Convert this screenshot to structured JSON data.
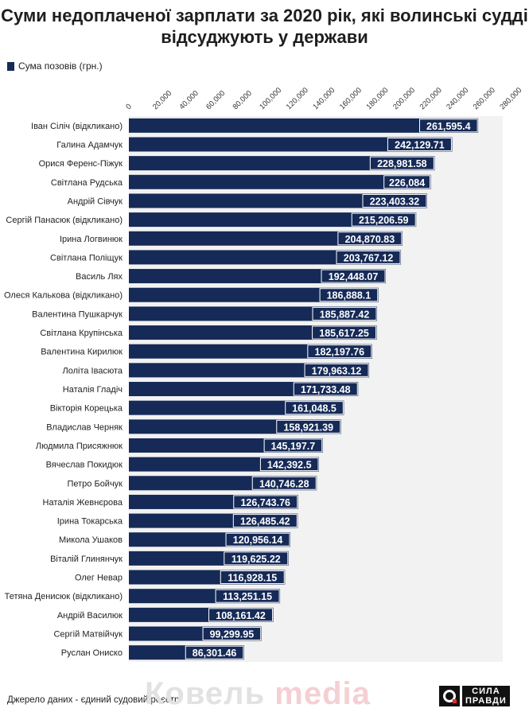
{
  "title": "Суми недоплаченої зарплати за 2020 рік, які волинські судді відсуджують у держави",
  "legend": {
    "label": "Сума позовів (грн.)"
  },
  "colors": {
    "bar": "#162a57",
    "plot_bg": "#f2f2f2",
    "label_bg": "#162a57",
    "label_text": "#ffffff"
  },
  "chart_data": {
    "type": "bar",
    "orientation": "horizontal",
    "categories": [
      "Іван Сіліч (відкликано)",
      "Галина Адамчук",
      "Орися Ференс-Піжук",
      "Світлана Рудська",
      "Андрій Сівчук",
      "Сергій Панасюк (відкликано)",
      "Ірина Логвинюк",
      "Світлана Поліщук",
      "Василь Лях",
      "Олеся Калькова (відкликано)",
      "Валентина Пушкарчук",
      "Світлана Крупінська",
      "Валентина Кирилюк",
      "Лоліта Івасюта",
      "Наталія Гладіч",
      "Вікторія Корецька",
      "Владислав Черняк",
      "Людмила Присяжнюк",
      "Вячеслав Покидюк",
      "Петро Бойчук",
      "Наталія Жевнєрова",
      "Ірина Токарська",
      "Микола Ушаков",
      "Віталій Глинянчук",
      "Олег Невар",
      "Тетяна Денисюк (відкликано)",
      "Андрій Василюк",
      "Сергій Матвійчук",
      "Руслан Ониско"
    ],
    "series": [
      {
        "name": "Сума позовів (грн.)",
        "values": [
          261595.4,
          242129.71,
          228981.58,
          226084,
          223403.32,
          215206.59,
          204870.83,
          203767.12,
          192448.07,
          186888.1,
          185887.42,
          185617.25,
          182197.76,
          179963.12,
          171733.48,
          161048.5,
          158921.39,
          145197.7,
          142392.5,
          140746.28,
          126743.76,
          126485.42,
          120956.14,
          119625.22,
          116928.15,
          113251.15,
          108161.42,
          99299.95,
          86301.46
        ]
      }
    ],
    "value_labels": [
      "261,595.4",
      "242,129.71",
      "228,981.58",
      "226,084",
      "223,403.32",
      "215,206.59",
      "204,870.83",
      "203,767.12",
      "192,448.07",
      "186,888.1",
      "185,887.42",
      "185,617.25",
      "182,197.76",
      "179,963.12",
      "171,733.48",
      "161,048.5",
      "158,921.39",
      "145,197.7",
      "142,392.5",
      "140,746.28",
      "126,743.76",
      "126,485.42",
      "120,956.14",
      "119,625.22",
      "116,928.15",
      "113,251.15",
      "108,161.42",
      "99,299.95",
      "86,301.46"
    ],
    "x_ticks": [
      "0",
      "20,000",
      "40,000",
      "60,000",
      "80,000",
      "100,000",
      "120,000",
      "140,000",
      "160,000",
      "180,000",
      "200,000",
      "220,000",
      "240,000",
      "260,000",
      "280,000"
    ],
    "xlim": [
      0,
      280000
    ],
    "grid": false,
    "legend_position": "top-left"
  },
  "footer": {
    "source": "Джерело даних - єдиний судовий реєстр",
    "watermark_part1": "Ковель ",
    "watermark_part2": "media",
    "logo_line1": "СИЛА",
    "logo_line2": "ПРАВДИ"
  }
}
